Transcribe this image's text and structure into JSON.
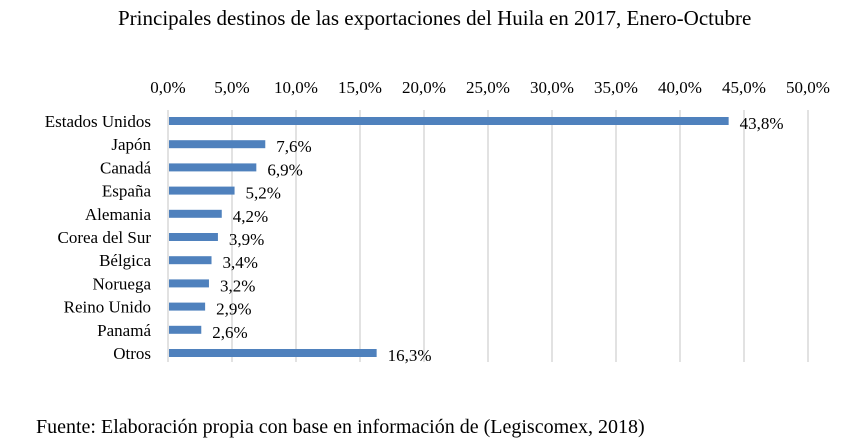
{
  "chart_data": {
    "type": "bar",
    "orientation": "horizontal",
    "title": "Principales destinos de las exportaciones del Huila en 2017, Enero-Octubre",
    "categories": [
      "Estados Unidos",
      "Japón",
      "Canadá",
      "España",
      "Alemania",
      "Corea del Sur",
      "Bélgica",
      "Noruega",
      "Reino Unido",
      "Panamá",
      "Otros"
    ],
    "values": [
      43.8,
      7.6,
      6.9,
      5.2,
      4.2,
      3.9,
      3.4,
      3.2,
      2.9,
      2.6,
      16.3
    ],
    "data_labels": [
      "43,8%",
      "7,6%",
      "6,9%",
      "5,2%",
      "4,2%",
      "3,9%",
      "3,4%",
      "3,2%",
      "2,9%",
      "2,6%",
      "16,3%"
    ],
    "xlim": [
      0,
      50
    ],
    "x_ticks": [
      0,
      5,
      10,
      15,
      20,
      25,
      30,
      35,
      40,
      45,
      50
    ],
    "x_tick_labels": [
      "0,0%",
      "5,0%",
      "10,0%",
      "15,0%",
      "20,0%",
      "25,0%",
      "30,0%",
      "35,0%",
      "40,0%",
      "45,0%",
      "50,0%"
    ],
    "x_axis_position": "top",
    "xlabel": "",
    "ylabel": "",
    "grid": true,
    "legend": "none",
    "bar_color": "#4F81BD",
    "grid_color": "#D9D9D9"
  },
  "source_note": "Fuente: Elaboración propia con base en información de (Legiscomex, 2018)"
}
